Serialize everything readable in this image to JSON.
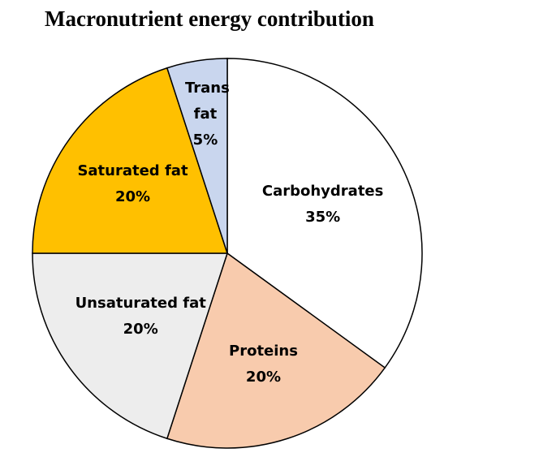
{
  "chart_data": {
    "type": "pie",
    "title": "Macronutrient energy contribution",
    "categories": [
      "Carbohydrates",
      "Proteins",
      "Unsaturated fat",
      "Saturated fat",
      "Trans fat"
    ],
    "values": [
      35,
      20,
      20,
      20,
      5
    ],
    "value_labels": [
      "35%",
      "20%",
      "20%",
      "20%",
      "5%"
    ],
    "colors": [
      "#ffffff",
      "#f8cbad",
      "#ededed",
      "#ffc000",
      "#c9d6ee"
    ]
  }
}
